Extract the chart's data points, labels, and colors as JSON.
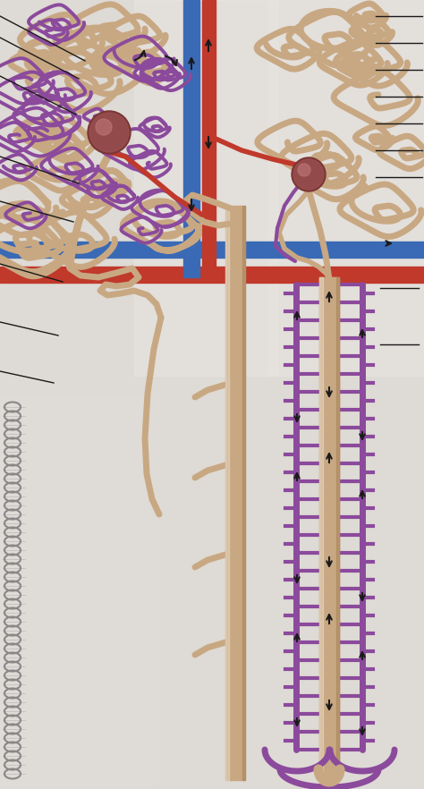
{
  "background_color": "#d8d5d0",
  "tubule_tan": "#c8a882",
  "tubule_tan_dark": "#b8936a",
  "purple_vessel": "#8b4a9c",
  "red_artery": "#c0392b",
  "blue_vein": "#3a6ab5",
  "glomerulus_color": "#8b4040",
  "arrow_color": "#1a1a1a",
  "figsize": [
    4.74,
    8.82
  ],
  "dpi": 100
}
